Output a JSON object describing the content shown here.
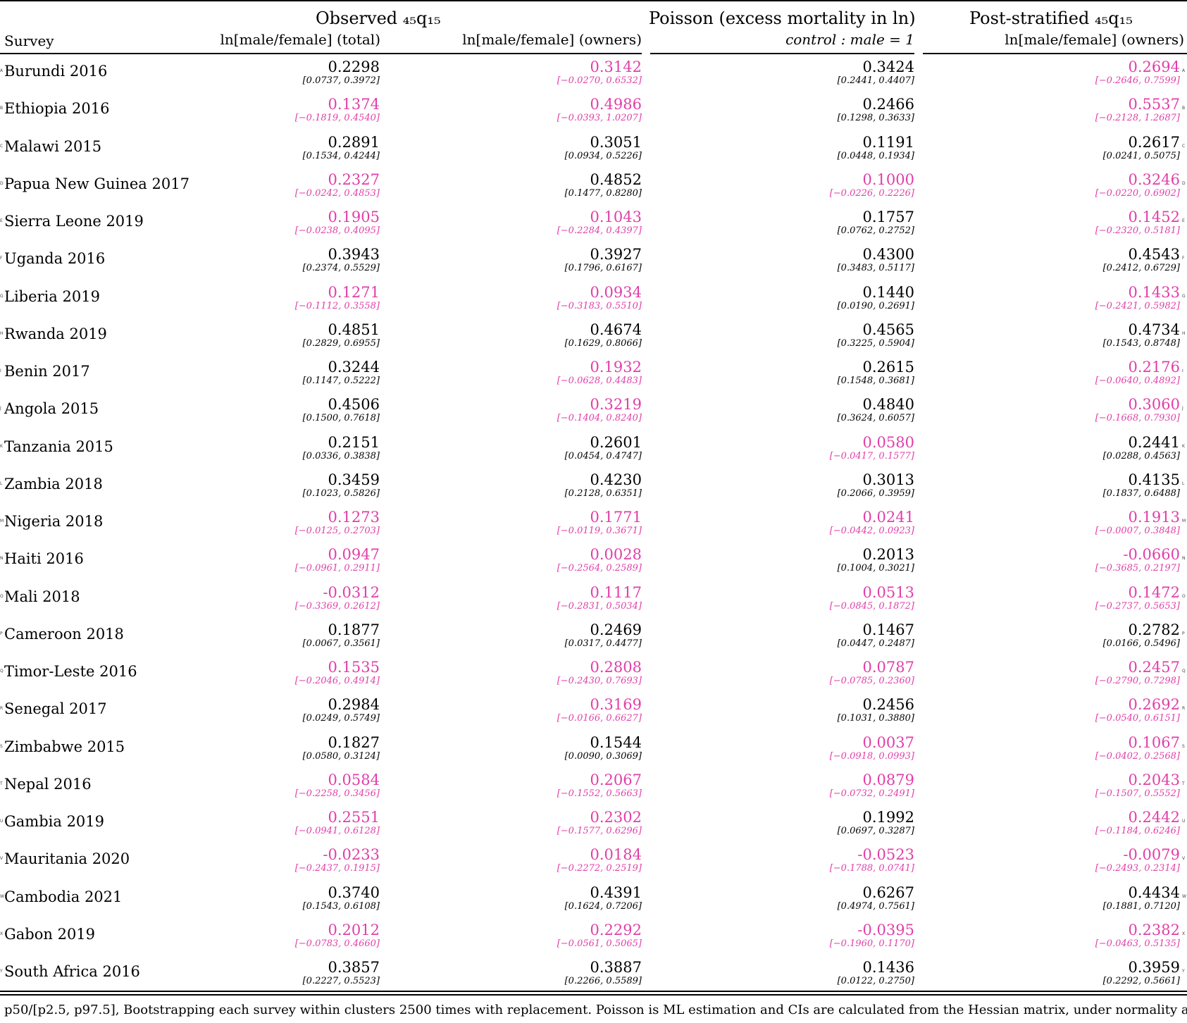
{
  "header": {
    "group1": "Observed ₄₅q₁₅",
    "group2": "Poisson (excess mortality in ln)",
    "group3": "Post-stratified ₄₅q₁₅",
    "survey_label": "Survey",
    "col1": "ln[male/female] (total)",
    "col2": "ln[male/female] (owners)",
    "col3": "control : male = 1",
    "col4": "ln[male/female] (owners)"
  },
  "highlight_color": "#e03fa8",
  "rows": [
    {
      "marker": "A",
      "name": "Burundi 2016",
      "c": [
        {
          "v": "0.2298",
          "ci": "[0.0737, 0.3972]",
          "hl": false
        },
        {
          "v": "0.3142",
          "ci": "[−0.0270, 0.6532]",
          "hl": true
        },
        {
          "v": "0.3424",
          "ci": "[0.2441, 0.4407]",
          "hl": false
        },
        {
          "v": "0.2694",
          "ci": "[−0.2646, 0.7599]",
          "hl": true
        }
      ]
    },
    {
      "marker": "B",
      "name": "Ethiopia 2016",
      "c": [
        {
          "v": "0.1374",
          "ci": "[−0.1819, 0.4540]",
          "hl": true
        },
        {
          "v": "0.4986",
          "ci": "[−0.0393, 1.0207]",
          "hl": true
        },
        {
          "v": "0.2466",
          "ci": "[0.1298, 0.3633]",
          "hl": false
        },
        {
          "v": "0.5537",
          "ci": "[−0.2128, 1.2687]",
          "hl": true
        }
      ]
    },
    {
      "marker": "C",
      "name": "Malawi 2015",
      "c": [
        {
          "v": "0.2891",
          "ci": "[0.1534, 0.4244]",
          "hl": false
        },
        {
          "v": "0.3051",
          "ci": "[0.0934, 0.5226]",
          "hl": false
        },
        {
          "v": "0.1191",
          "ci": "[0.0448, 0.1934]",
          "hl": false
        },
        {
          "v": "0.2617",
          "ci": "[0.0241, 0.5075]",
          "hl": false
        }
      ]
    },
    {
      "marker": "D",
      "name": "Papua New Guinea 2017",
      "c": [
        {
          "v": "0.2327",
          "ci": "[−0.0242, 0.4853]",
          "hl": true
        },
        {
          "v": "0.4852",
          "ci": "[0.1477, 0.8280]",
          "hl": false
        },
        {
          "v": "0.1000",
          "ci": "[−0.0226, 0.2226]",
          "hl": true
        },
        {
          "v": "0.3246",
          "ci": "[−0.0220, 0.6902]",
          "hl": true
        }
      ]
    },
    {
      "marker": "E",
      "name": "Sierra Leone 2019",
      "c": [
        {
          "v": "0.1905",
          "ci": "[−0.0238, 0.4095]",
          "hl": true
        },
        {
          "v": "0.1043",
          "ci": "[−0.2284, 0.4397]",
          "hl": true
        },
        {
          "v": "0.1757",
          "ci": "[0.0762, 0.2752]",
          "hl": false
        },
        {
          "v": "0.1452",
          "ci": "[−0.2320, 0.5181]",
          "hl": true
        }
      ]
    },
    {
      "marker": "F",
      "name": "Uganda 2016",
      "c": [
        {
          "v": "0.3943",
          "ci": "[0.2374, 0.5529]",
          "hl": false
        },
        {
          "v": "0.3927",
          "ci": "[0.1796, 0.6167]",
          "hl": false
        },
        {
          "v": "0.4300",
          "ci": "[0.3483, 0.5117]",
          "hl": false
        },
        {
          "v": "0.4543",
          "ci": "[0.2412, 0.6729]",
          "hl": false
        }
      ]
    },
    {
      "marker": "G",
      "name": "Liberia 2019",
      "c": [
        {
          "v": "0.1271",
          "ci": "[−0.1112, 0.3558]",
          "hl": true
        },
        {
          "v": "0.0934",
          "ci": "[−0.3183, 0.5510]",
          "hl": true
        },
        {
          "v": "0.1440",
          "ci": "[0.0190, 0.2691]",
          "hl": false
        },
        {
          "v": "0.1433",
          "ci": "[−0.2421, 0.5982]",
          "hl": true
        }
      ]
    },
    {
      "marker": "H",
      "name": "Rwanda 2019",
      "c": [
        {
          "v": "0.4851",
          "ci": "[0.2829, 0.6955]",
          "hl": false
        },
        {
          "v": "0.4674",
          "ci": "[0.1629, 0.8066]",
          "hl": false
        },
        {
          "v": "0.4565",
          "ci": "[0.3225, 0.5904]",
          "hl": false
        },
        {
          "v": "0.4734",
          "ci": "[0.1543, 0.8748]",
          "hl": false
        }
      ]
    },
    {
      "marker": "I",
      "name": "Benin 2017",
      "c": [
        {
          "v": "0.3244",
          "ci": "[0.1147, 0.5222]",
          "hl": false
        },
        {
          "v": "0.1932",
          "ci": "[−0.0628, 0.4483]",
          "hl": true
        },
        {
          "v": "0.2615",
          "ci": "[0.1548, 0.3681]",
          "hl": false
        },
        {
          "v": "0.2176",
          "ci": "[−0.0640, 0.4892]",
          "hl": true
        }
      ]
    },
    {
      "marker": "J",
      "name": "Angola 2015",
      "c": [
        {
          "v": "0.4506",
          "ci": "[0.1500, 0.7618]",
          "hl": false
        },
        {
          "v": "0.3219",
          "ci": "[−0.1404, 0.8240]",
          "hl": true
        },
        {
          "v": "0.4840",
          "ci": "[0.3624, 0.6057]",
          "hl": false
        },
        {
          "v": "0.3060",
          "ci": "[−0.1668, 0.7930]",
          "hl": true
        }
      ]
    },
    {
      "marker": "K",
      "name": "Tanzania 2015",
      "c": [
        {
          "v": "0.2151",
          "ci": "[0.0336, 0.3838]",
          "hl": false
        },
        {
          "v": "0.2601",
          "ci": "[0.0454, 0.4747]",
          "hl": false
        },
        {
          "v": "0.0580",
          "ci": "[−0.0417, 0.1577]",
          "hl": true
        },
        {
          "v": "0.2441",
          "ci": "[0.0288, 0.4563]",
          "hl": false
        }
      ]
    },
    {
      "marker": "L",
      "name": "Zambia 2018",
      "c": [
        {
          "v": "0.3459",
          "ci": "[0.1023, 0.5826]",
          "hl": false
        },
        {
          "v": "0.4230",
          "ci": "[0.2128, 0.6351]",
          "hl": false
        },
        {
          "v": "0.3013",
          "ci": "[0.2066, 0.3959]",
          "hl": false
        },
        {
          "v": "0.4135",
          "ci": "[0.1837, 0.6488]",
          "hl": false
        }
      ]
    },
    {
      "marker": "M",
      "name": "Nigeria 2018",
      "c": [
        {
          "v": "0.1273",
          "ci": "[−0.0125, 0.2703]",
          "hl": true
        },
        {
          "v": "0.1771",
          "ci": "[−0.0119, 0.3671]",
          "hl": true
        },
        {
          "v": "0.0241",
          "ci": "[−0.0442, 0.0923]",
          "hl": true
        },
        {
          "v": "0.1913",
          "ci": "[−0.0007, 0.3848]",
          "hl": true
        }
      ]
    },
    {
      "marker": "N",
      "name": "Haiti 2016",
      "c": [
        {
          "v": "0.0947",
          "ci": "[−0.0961, 0.2911]",
          "hl": true
        },
        {
          "v": "0.0028",
          "ci": "[−0.2564, 0.2589]",
          "hl": true
        },
        {
          "v": "0.2013",
          "ci": "[0.1004, 0.3021]",
          "hl": false
        },
        {
          "v": "-0.0660",
          "ci": "[−0.3685, 0.2197]",
          "hl": true
        }
      ]
    },
    {
      "marker": "O",
      "name": "Mali 2018",
      "c": [
        {
          "v": "-0.0312",
          "ci": "[−0.3369, 0.2612]",
          "hl": true
        },
        {
          "v": "0.1117",
          "ci": "[−0.2831, 0.5034]",
          "hl": true
        },
        {
          "v": "0.0513",
          "ci": "[−0.0845, 0.1872]",
          "hl": true
        },
        {
          "v": "0.1472",
          "ci": "[−0.2737, 0.5653]",
          "hl": true
        }
      ]
    },
    {
      "marker": "P",
      "name": "Cameroon 2018",
      "c": [
        {
          "v": "0.1877",
          "ci": "[0.0067, 0.3561]",
          "hl": false
        },
        {
          "v": "0.2469",
          "ci": "[0.0317, 0.4477]",
          "hl": false
        },
        {
          "v": "0.1467",
          "ci": "[0.0447, 0.2487]",
          "hl": false
        },
        {
          "v": "0.2782",
          "ci": "[0.0166, 0.5496]",
          "hl": false
        }
      ]
    },
    {
      "marker": "Q",
      "name": "Timor-Leste 2016",
      "c": [
        {
          "v": "0.1535",
          "ci": "[−0.2046, 0.4914]",
          "hl": true
        },
        {
          "v": "0.2808",
          "ci": "[−0.2430, 0.7693]",
          "hl": true
        },
        {
          "v": "0.0787",
          "ci": "[−0.0785, 0.2360]",
          "hl": true
        },
        {
          "v": "0.2457",
          "ci": "[−0.2790, 0.7298]",
          "hl": true
        }
      ]
    },
    {
      "marker": "R",
      "name": "Senegal 2017",
      "c": [
        {
          "v": "0.2984",
          "ci": "[0.0249, 0.5749]",
          "hl": false
        },
        {
          "v": "0.3169",
          "ci": "[−0.0166, 0.6627]",
          "hl": true
        },
        {
          "v": "0.2456",
          "ci": "[0.1031, 0.3880]",
          "hl": false
        },
        {
          "v": "0.2692",
          "ci": "[−0.0540, 0.6151]",
          "hl": true
        }
      ]
    },
    {
      "marker": "S",
      "name": "Zimbabwe 2015",
      "c": [
        {
          "v": "0.1827",
          "ci": "[0.0580, 0.3124]",
          "hl": false
        },
        {
          "v": "0.1544",
          "ci": "[0.0090, 0.3069]",
          "hl": false
        },
        {
          "v": "0.0037",
          "ci": "[−0.0918, 0.0993]",
          "hl": true
        },
        {
          "v": "0.1067",
          "ci": "[−0.0402, 0.2568]",
          "hl": true
        }
      ]
    },
    {
      "marker": "T",
      "name": "Nepal 2016",
      "c": [
        {
          "v": "0.0584",
          "ci": "[−0.2258, 0.3456]",
          "hl": true
        },
        {
          "v": "0.2067",
          "ci": "[−0.1552, 0.5663]",
          "hl": true
        },
        {
          "v": "0.0879",
          "ci": "[−0.0732, 0.2491]",
          "hl": true
        },
        {
          "v": "0.2043",
          "ci": "[−0.1507, 0.5552]",
          "hl": true
        }
      ]
    },
    {
      "marker": "U",
      "name": "Gambia 2019",
      "c": [
        {
          "v": "0.2551",
          "ci": "[−0.0941, 0.6128]",
          "hl": true
        },
        {
          "v": "0.2302",
          "ci": "[−0.1577, 0.6296]",
          "hl": true
        },
        {
          "v": "0.1992",
          "ci": "[0.0697, 0.3287]",
          "hl": false
        },
        {
          "v": "0.2442",
          "ci": "[−0.1184, 0.6246]",
          "hl": true
        }
      ]
    },
    {
      "marker": "V",
      "name": "Mauritania 2020",
      "c": [
        {
          "v": "-0.0233",
          "ci": "[−0.2437, 0.1915]",
          "hl": true
        },
        {
          "v": "0.0184",
          "ci": "[−0.2272, 0.2519]",
          "hl": true
        },
        {
          "v": "-0.0523",
          "ci": "[−0.1788, 0.0741]",
          "hl": true
        },
        {
          "v": "-0.0079",
          "ci": "[−0.2493, 0.2314]",
          "hl": true
        }
      ]
    },
    {
      "marker": "W",
      "name": "Cambodia 2021",
      "c": [
        {
          "v": "0.3740",
          "ci": "[0.1543, 0.6108]",
          "hl": false
        },
        {
          "v": "0.4391",
          "ci": "[0.1624, 0.7206]",
          "hl": false
        },
        {
          "v": "0.6267",
          "ci": "[0.4974, 0.7561]",
          "hl": false
        },
        {
          "v": "0.4434",
          "ci": "[0.1881, 0.7120]",
          "hl": false
        }
      ]
    },
    {
      "marker": "X",
      "name": "Gabon 2019",
      "c": [
        {
          "v": "0.2012",
          "ci": "[−0.0783, 0.4660]",
          "hl": true
        },
        {
          "v": "0.2292",
          "ci": "[−0.0561, 0.5065]",
          "hl": true
        },
        {
          "v": "-0.0395",
          "ci": "[−0.1960, 0.1170]",
          "hl": true
        },
        {
          "v": "0.2382",
          "ci": "[−0.0463, 0.5135]",
          "hl": true
        }
      ]
    },
    {
      "marker": "Y",
      "name": "South Africa 2016",
      "c": [
        {
          "v": "0.3857",
          "ci": "[0.2227, 0.5523]",
          "hl": false
        },
        {
          "v": "0.3887",
          "ci": "[0.2266, 0.5589]",
          "hl": false
        },
        {
          "v": "0.1436",
          "ci": "[0.0122, 0.2750]",
          "hl": false
        },
        {
          "v": "0.3959",
          "ci": "[0.2292, 0.5661]",
          "hl": false
        }
      ]
    }
  ],
  "footnote": "p50/[p2.5, p97.5], Bootstrapping each survey within clusters 2500 times with replacement. Poisson is ML estimation and CIs are calculated from the Hessian matrix, under normality a"
}
